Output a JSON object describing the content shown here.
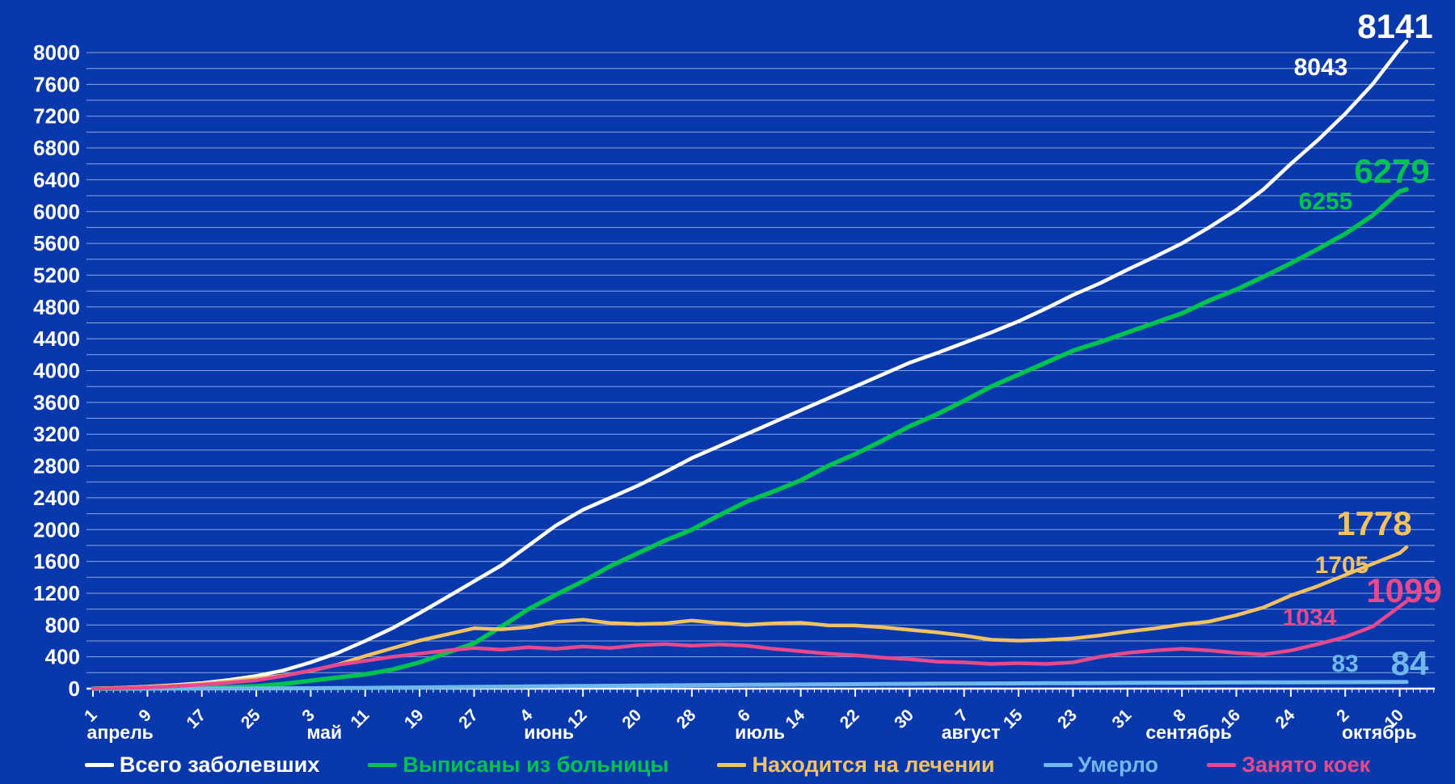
{
  "chart_data": {
    "type": "line",
    "title": "",
    "background": "#0838ac",
    "grid": true,
    "legend_position": "bottom",
    "ylim": [
      0,
      8000
    ],
    "ytick_step": 400,
    "grid_step": 200,
    "yticks": [
      0,
      400,
      800,
      1200,
      1600,
      2000,
      2400,
      2800,
      3200,
      3600,
      4000,
      4400,
      4800,
      5200,
      5600,
      6000,
      6400,
      6800,
      7200,
      7600,
      8000
    ],
    "x_domain_days": [
      0,
      193
    ],
    "x_days": [
      0,
      4,
      8,
      12,
      16,
      20,
      24,
      28,
      32,
      36,
      40,
      44,
      48,
      52,
      56,
      60,
      64,
      68,
      72,
      76,
      80,
      84,
      88,
      92,
      96,
      100,
      104,
      108,
      112,
      116,
      120,
      124,
      128,
      132,
      136,
      140,
      144,
      148,
      152,
      156,
      160,
      164,
      168,
      172,
      176,
      180,
      184,
      188,
      192,
      193
    ],
    "xticks": [
      {
        "day": 0,
        "label": "1"
      },
      {
        "day": 8,
        "label": "9"
      },
      {
        "day": 16,
        "label": "17"
      },
      {
        "day": 24,
        "label": "25"
      },
      {
        "day": 32,
        "label": "3"
      },
      {
        "day": 40,
        "label": "11"
      },
      {
        "day": 48,
        "label": "19"
      },
      {
        "day": 56,
        "label": "27"
      },
      {
        "day": 64,
        "label": "4"
      },
      {
        "day": 72,
        "label": "12"
      },
      {
        "day": 80,
        "label": "20"
      },
      {
        "day": 88,
        "label": "28"
      },
      {
        "day": 96,
        "label": "6"
      },
      {
        "day": 104,
        "label": "14"
      },
      {
        "day": 112,
        "label": "22"
      },
      {
        "day": 120,
        "label": "30"
      },
      {
        "day": 128,
        "label": "7"
      },
      {
        "day": 136,
        "label": "15"
      },
      {
        "day": 144,
        "label": "23"
      },
      {
        "day": 152,
        "label": "31"
      },
      {
        "day": 160,
        "label": "8"
      },
      {
        "day": 168,
        "label": "16"
      },
      {
        "day": 176,
        "label": "24"
      },
      {
        "day": 184,
        "label": "2"
      },
      {
        "day": 192,
        "label": "10"
      }
    ],
    "months": [
      {
        "day": 4,
        "label": "апрель"
      },
      {
        "day": 34,
        "label": "май"
      },
      {
        "day": 67,
        "label": "июнь"
      },
      {
        "day": 98,
        "label": "июль"
      },
      {
        "day": 129,
        "label": "август"
      },
      {
        "day": 161,
        "label": "сентябрь"
      },
      {
        "day": 189,
        "label": "октябрь"
      }
    ],
    "series": [
      {
        "key": "total",
        "name": "Всего заболевших",
        "color": "#ffffff",
        "width": 4.5,
        "values": [
          3,
          10,
          25,
          45,
          70,
          110,
          160,
          230,
          330,
          450,
          600,
          760,
          950,
          1150,
          1350,
          1550,
          1800,
          2050,
          2250,
          2400,
          2550,
          2720,
          2900,
          3050,
          3200,
          3350,
          3500,
          3650,
          3800,
          3950,
          4100,
          4220,
          4350,
          4480,
          4620,
          4780,
          4950,
          5100,
          5270,
          5430,
          5600,
          5800,
          6020,
          6280,
          6600,
          6900,
          7230,
          7600,
          8043,
          8141
        ]
      },
      {
        "key": "discharged",
        "name": "Выписаны из больницы",
        "color": "#00c24f",
        "width": 5.5,
        "values": [
          0,
          0,
          2,
          5,
          10,
          18,
          30,
          60,
          100,
          140,
          180,
          240,
          330,
          450,
          570,
          780,
          1000,
          1180,
          1350,
          1540,
          1700,
          1860,
          2000,
          2180,
          2350,
          2480,
          2620,
          2800,
          2950,
          3120,
          3300,
          3450,
          3620,
          3800,
          3950,
          4100,
          4250,
          4360,
          4480,
          4600,
          4720,
          4880,
          5020,
          5180,
          5350,
          5530,
          5720,
          5950,
          6255,
          6279
        ]
      },
      {
        "key": "treatment",
        "name": "Находится на лечении",
        "color": "#f1c263",
        "width": 4.5,
        "values": [
          3,
          10,
          23,
          39,
          59,
          90,
          127,
          166,
          225,
          303,
          411,
          508,
          605,
          682,
          759,
          746,
          773,
          840,
          867,
          824,
          812,
          819,
          857,
          824,
          802,
          820,
          828,
          796,
          794,
          772,
          740,
          708,
          667,
          615,
          604,
          612,
          631,
          670,
          718,
          757,
          806,
          844,
          923,
          1022,
          1171,
          1290,
          1429,
          1568,
          1705,
          1778
        ]
      },
      {
        "key": "died",
        "name": "Умерло",
        "color": "#70b7ea",
        "width": 5,
        "values": [
          0,
          0,
          0,
          1,
          1,
          2,
          3,
          4,
          5,
          7,
          9,
          12,
          15,
          18,
          21,
          24,
          27,
          30,
          33,
          36,
          38,
          41,
          43,
          46,
          48,
          50,
          52,
          54,
          56,
          58,
          60,
          62,
          63,
          65,
          66,
          68,
          69,
          70,
          72,
          73,
          74,
          76,
          77,
          78,
          79,
          80,
          81,
          82,
          83,
          84
        ]
      },
      {
        "key": "beds",
        "name": "Занято коек",
        "color": "#e8498d",
        "width": 4.5,
        "values": [
          0,
          5,
          15,
          30,
          50,
          75,
          105,
          160,
          230,
          300,
          350,
          400,
          440,
          480,
          510,
          490,
          520,
          500,
          530,
          510,
          545,
          560,
          540,
          555,
          540,
          500,
          470,
          440,
          420,
          390,
          370,
          340,
          330,
          310,
          320,
          310,
          330,
          400,
          450,
          480,
          500,
          480,
          450,
          430,
          480,
          560,
          650,
          780,
          1034,
          1099
        ]
      }
    ],
    "end_labels": {
      "total_latest": "8141",
      "total_prev": "8043",
      "discharged_latest": "6279",
      "discharged_prev": "6255",
      "treatment_latest": "1778",
      "treatment_prev": "1705",
      "beds_latest": "1099",
      "beds_prev": "1034",
      "died_latest": "84",
      "died_prev": "83"
    }
  }
}
